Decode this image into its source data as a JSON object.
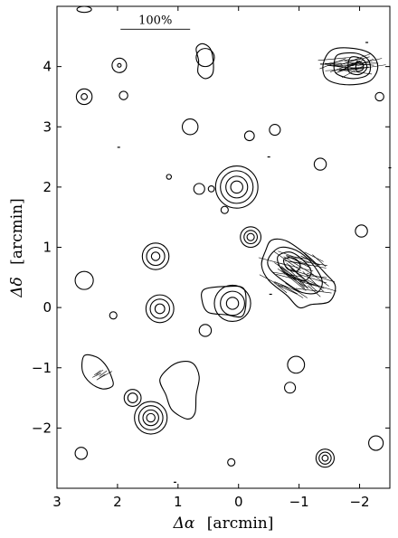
{
  "chart_data": {
    "type": "contour",
    "xlabel_symbol": "Δα",
    "xlabel_unit": "[arcmin]",
    "ylabel_symbol": "Δδ",
    "ylabel_unit": "[arcmin]",
    "xlim": [
      3,
      -2.5
    ],
    "ylim": [
      -3,
      5
    ],
    "x_ticks": [
      {
        "value": 3,
        "label": "3"
      },
      {
        "value": 2,
        "label": "2"
      },
      {
        "value": 1,
        "label": "1"
      },
      {
        "value": 0,
        "label": "0"
      },
      {
        "value": -1,
        "label": "−1"
      },
      {
        "value": -2,
        "label": "−2"
      }
    ],
    "y_ticks": [
      {
        "value": 4,
        "label": "4"
      },
      {
        "value": 3,
        "label": "3"
      },
      {
        "value": 2,
        "label": "2"
      },
      {
        "value": 1,
        "label": "1"
      },
      {
        "value": 0,
        "label": "0"
      },
      {
        "value": -1,
        "label": "−1"
      },
      {
        "value": -2,
        "label": "−2"
      }
    ],
    "scale_bar": {
      "label": "100%",
      "x_start": 1.95,
      "x_end": 0.8,
      "y": 4.62
    },
    "sources": [
      {
        "x": 2.55,
        "y": 4.95,
        "r": [
          0.12
        ],
        "ry": [
          0.05
        ]
      },
      {
        "x": 1.97,
        "y": 4.02,
        "r": [
          0.12,
          0.03
        ]
      },
      {
        "x": 2.55,
        "y": 3.5,
        "r": [
          0.13,
          0.05
        ]
      },
      {
        "x": 1.9,
        "y": 3.52,
        "r": [
          0.07
        ]
      },
      {
        "x": 0.55,
        "y": 4.15,
        "r": [
          0.15
        ]
      },
      {
        "x": 0.8,
        "y": 3.0,
        "r": [
          0.13
        ]
      },
      {
        "x": -0.18,
        "y": 2.85,
        "r": [
          0.08
        ]
      },
      {
        "x": -0.6,
        "y": 2.95,
        "r": [
          0.09
        ]
      },
      {
        "x": -1.35,
        "y": 2.38,
        "r": [
          0.1
        ]
      },
      {
        "x": 0.03,
        "y": 2.0,
        "r": [
          0.35,
          0.27,
          0.18,
          0.1
        ]
      },
      {
        "x": 0.65,
        "y": 1.97,
        "r": [
          0.09
        ]
      },
      {
        "x": 0.45,
        "y": 1.97,
        "r": [
          0.05
        ]
      },
      {
        "x": 1.15,
        "y": 2.17,
        "r": [
          0.04
        ]
      },
      {
        "x": 0.23,
        "y": 1.62,
        "r": [
          0.06
        ]
      },
      {
        "x": -0.2,
        "y": 1.17,
        "r": [
          0.17,
          0.11,
          0.06
        ]
      },
      {
        "x": 1.37,
        "y": 0.85,
        "r": [
          0.22,
          0.15,
          0.07
        ]
      },
      {
        "x": -2.03,
        "y": 1.27,
        "r": [
          0.1
        ]
      },
      {
        "x": 2.55,
        "y": 0.45,
        "r": [
          0.15
        ]
      },
      {
        "x": 1.3,
        "y": -0.02,
        "r": [
          0.23,
          0.16,
          0.08
        ]
      },
      {
        "x": 0.1,
        "y": 0.07,
        "r": [
          0.3,
          0.2,
          0.1
        ]
      },
      {
        "x": 0.55,
        "y": -0.38,
        "r": [
          0.1
        ]
      },
      {
        "x": 2.07,
        "y": -0.13,
        "r": [
          0.06
        ]
      },
      {
        "x": -0.95,
        "y": -0.95,
        "r": [
          0.14
        ]
      },
      {
        "x": -0.85,
        "y": -1.33,
        "r": [
          0.09
        ]
      },
      {
        "x": 1.75,
        "y": -1.5,
        "r": [
          0.14,
          0.08
        ]
      },
      {
        "x": 1.45,
        "y": -1.83,
        "r": [
          0.27,
          0.2,
          0.13,
          0.07
        ]
      },
      {
        "x": -1.43,
        "y": -2.5,
        "r": [
          0.15,
          0.1,
          0.05
        ]
      },
      {
        "x": 2.6,
        "y": -2.42,
        "r": [
          0.1
        ]
      },
      {
        "x": 0.12,
        "y": -2.57,
        "r": [
          0.06
        ]
      },
      {
        "x": -2.27,
        "y": -2.25,
        "r": [
          0.12
        ]
      },
      {
        "x": -2.33,
        "y": 3.5,
        "r": [
          0.07
        ]
      }
    ],
    "blobs": [
      {
        "x": 0.53,
        "y": 4.1,
        "pts": [
          [
            0.6,
            4.38
          ],
          [
            0.47,
            4.3
          ],
          [
            0.42,
            4.1
          ],
          [
            0.43,
            3.88
          ],
          [
            0.55,
            3.8
          ],
          [
            0.67,
            3.9
          ],
          [
            0.66,
            4.1
          ],
          [
            0.7,
            4.3
          ]
        ]
      },
      {
        "x": 0.9,
        "y": -1.3,
        "pts": [
          [
            0.95,
            -0.9
          ],
          [
            0.75,
            -0.93
          ],
          [
            0.65,
            -1.15
          ],
          [
            0.7,
            -1.45
          ],
          [
            0.72,
            -1.75
          ],
          [
            0.85,
            -1.85
          ],
          [
            1.1,
            -1.7
          ],
          [
            1.2,
            -1.45
          ],
          [
            1.3,
            -1.2
          ],
          [
            1.15,
            -1.0
          ]
        ]
      },
      {
        "x": 2.25,
        "y": -1.1,
        "pts": [
          [
            2.55,
            -0.8
          ],
          [
            2.35,
            -0.82
          ],
          [
            2.2,
            -0.95
          ],
          [
            2.1,
            -1.15
          ],
          [
            2.08,
            -1.3
          ],
          [
            2.25,
            -1.35
          ],
          [
            2.45,
            -1.25
          ],
          [
            2.58,
            -1.05
          ]
        ]
      },
      {
        "x": 0.45,
        "y": 0.1,
        "pts": [
          [
            0.57,
            0.3
          ],
          [
            0.2,
            0.35
          ],
          [
            -0.08,
            0.32
          ],
          [
            -0.12,
            0.05
          ],
          [
            -0.05,
            -0.15
          ],
          [
            0.2,
            -0.12
          ],
          [
            0.5,
            -0.08
          ],
          [
            0.6,
            0.1
          ]
        ]
      }
    ],
    "complex_sources": [
      {
        "x": -0.85,
        "y": 0.6,
        "levels": [
          [
            [
              -0.45,
              0.95
            ],
            [
              -0.55,
              1.12
            ],
            [
              -0.8,
              1.1
            ],
            [
              -1.15,
              0.85
            ],
            [
              -1.45,
              0.55
            ],
            [
              -1.6,
              0.35
            ],
            [
              -1.5,
              0.1
            ],
            [
              -1.2,
              0.05
            ],
            [
              -1.0,
              0.0
            ],
            [
              -0.8,
              0.2
            ],
            [
              -0.5,
              0.45
            ],
            [
              -0.38,
              0.7
            ]
          ],
          [
            [
              -0.55,
              0.9
            ],
            [
              -0.7,
              1.0
            ],
            [
              -0.95,
              0.95
            ],
            [
              -1.2,
              0.75
            ],
            [
              -1.38,
              0.45
            ],
            [
              -1.3,
              0.25
            ],
            [
              -1.05,
              0.25
            ],
            [
              -0.8,
              0.4
            ],
            [
              -0.55,
              0.6
            ],
            [
              -0.48,
              0.75
            ]
          ],
          [
            [
              -0.65,
              0.85
            ],
            [
              -0.85,
              0.92
            ],
            [
              -1.05,
              0.8
            ],
            [
              -1.2,
              0.6
            ],
            [
              -1.1,
              0.45
            ],
            [
              -0.9,
              0.5
            ],
            [
              -0.7,
              0.65
            ]
          ],
          [
            [
              -0.75,
              0.8
            ],
            [
              -0.92,
              0.82
            ],
            [
              -1.02,
              0.7
            ],
            [
              -0.95,
              0.6
            ],
            [
              -0.8,
              0.65
            ]
          ]
        ]
      },
      {
        "x": -1.9,
        "y": 4.0,
        "levels": [
          [
            [
              -1.55,
              4.28
            ],
            [
              -1.9,
              4.3
            ],
            [
              -2.2,
              4.2
            ],
            [
              -2.3,
              3.98
            ],
            [
              -2.15,
              3.75
            ],
            [
              -1.75,
              3.7
            ],
            [
              -1.45,
              3.8
            ],
            [
              -1.4,
              4.05
            ]
          ],
          [
            [
              -1.65,
              4.2
            ],
            [
              -1.95,
              4.22
            ],
            [
              -2.15,
              4.1
            ],
            [
              -2.15,
              3.88
            ],
            [
              -1.9,
              3.8
            ],
            [
              -1.62,
              3.88
            ],
            [
              -1.58,
              4.05
            ]
          ],
          [
            [
              -1.85,
              4.15
            ],
            [
              -2.05,
              4.12
            ],
            [
              -2.12,
              3.98
            ],
            [
              -2.0,
              3.87
            ],
            [
              -1.82,
              3.92
            ]
          ],
          [
            [
              -1.95,
              4.08
            ],
            [
              -2.05,
              4.05
            ],
            [
              -2.05,
              3.95
            ],
            [
              -1.95,
              3.93
            ]
          ]
        ]
      }
    ],
    "vector_fields": [
      {
        "x": -0.95,
        "y": 0.55,
        "n": 45,
        "spread_x": 0.45,
        "spread_y": 0.3,
        "angle_deg": -25,
        "len": 0.55
      },
      {
        "x": -1.85,
        "y": 4.02,
        "n": 30,
        "spread_x": 0.35,
        "spread_y": 0.12,
        "angle_deg": 10,
        "len": 0.5
      },
      {
        "x": 2.28,
        "y": -1.1,
        "n": 6,
        "spread_x": 0.08,
        "spread_y": 0.08,
        "angle_deg": 35,
        "len": 0.25
      }
    ],
    "marks": [
      {
        "x": 1.98,
        "y": 2.66
      },
      {
        "x": -0.5,
        "y": 2.5
      },
      {
        "x": -0.53,
        "y": 0.22
      },
      {
        "x": -2.12,
        "y": 4.4
      },
      {
        "x": -2.5,
        "y": 2.32
      },
      {
        "x": 1.05,
        "y": -2.9
      }
    ]
  }
}
